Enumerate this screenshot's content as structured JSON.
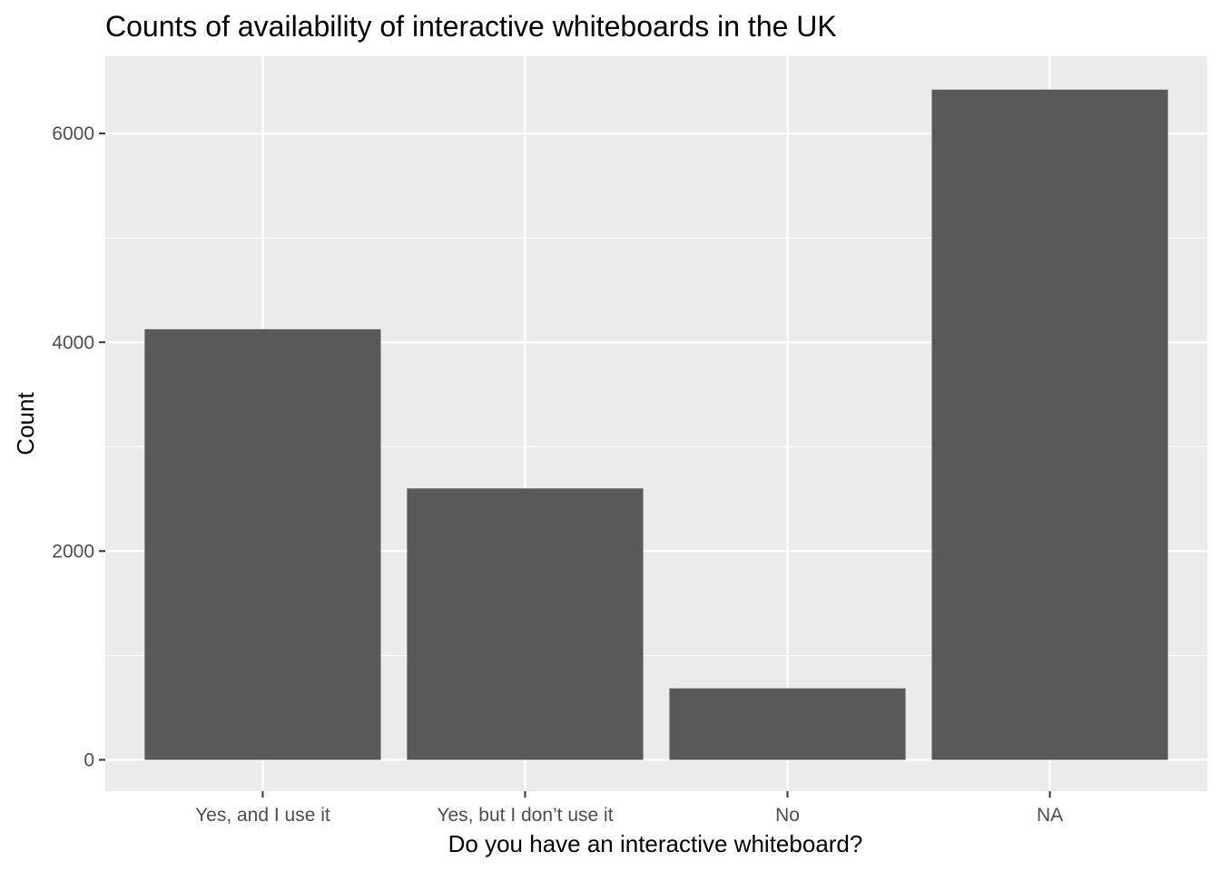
{
  "chart_data": {
    "type": "bar",
    "title": "Counts of availability of interactive whiteboards in the UK",
    "xlabel": "Do you have an interactive whiteboard?",
    "ylabel": "Count",
    "categories": [
      "Yes, and I use it",
      "Yes, but I don’t use it",
      "No",
      "NA"
    ],
    "values": [
      4125,
      2600,
      685,
      6420
    ],
    "yticks": [
      0,
      2000,
      4000,
      6000
    ],
    "ylim": [
      -300,
      6740
    ],
    "grid": true,
    "colors": {
      "panel_background": "#ebebeb",
      "gridline": "#ffffff",
      "bar_fill": "#595959",
      "tick_mark": "#333333",
      "tick_label": "#4d4d4d",
      "text": "#000000"
    }
  }
}
